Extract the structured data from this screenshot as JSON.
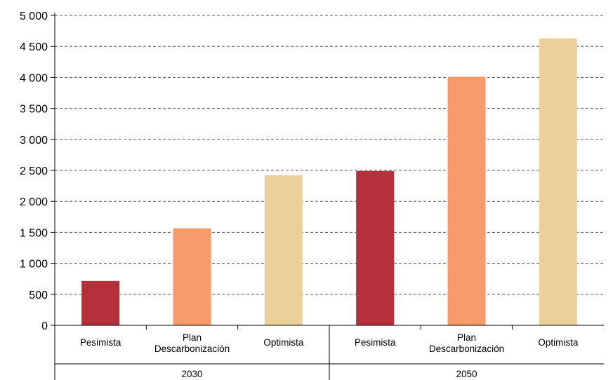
{
  "chart_data": {
    "type": "bar",
    "groups": [
      {
        "label": "2030",
        "bars": [
          {
            "category": "Pesimista",
            "lines": [
              "Pesimista"
            ],
            "value": 715,
            "color": "#b5303b"
          },
          {
            "category": "Plan Descarbonización",
            "lines": [
              "Plan",
              "Descarbonización"
            ],
            "value": 1565,
            "color": "#f79b6b"
          },
          {
            "category": "Optimista",
            "lines": [
              "Optimista"
            ],
            "value": 2420,
            "color": "#edcf9c"
          }
        ]
      },
      {
        "label": "2050",
        "bars": [
          {
            "category": "Pesimista",
            "lines": [
              "Pesimista"
            ],
            "value": 2490,
            "color": "#b5303b"
          },
          {
            "category": "Plan Descarbonización",
            "lines": [
              "Plan",
              "Descarbonización"
            ],
            "value": 4010,
            "color": "#f79b6b"
          },
          {
            "category": "Optimista",
            "lines": [
              "Optimista"
            ],
            "value": 4630,
            "color": "#edcf9c"
          }
        ]
      }
    ],
    "yticks": [
      "0",
      "500",
      "1 000",
      "1 500",
      "2 000",
      "2 500",
      "3 000",
      "3 500",
      "4 000",
      "4 500",
      "5 000"
    ],
    "ylim": [
      0,
      5000
    ],
    "grid": true,
    "title": "",
    "xlabel": "",
    "ylabel": ""
  }
}
